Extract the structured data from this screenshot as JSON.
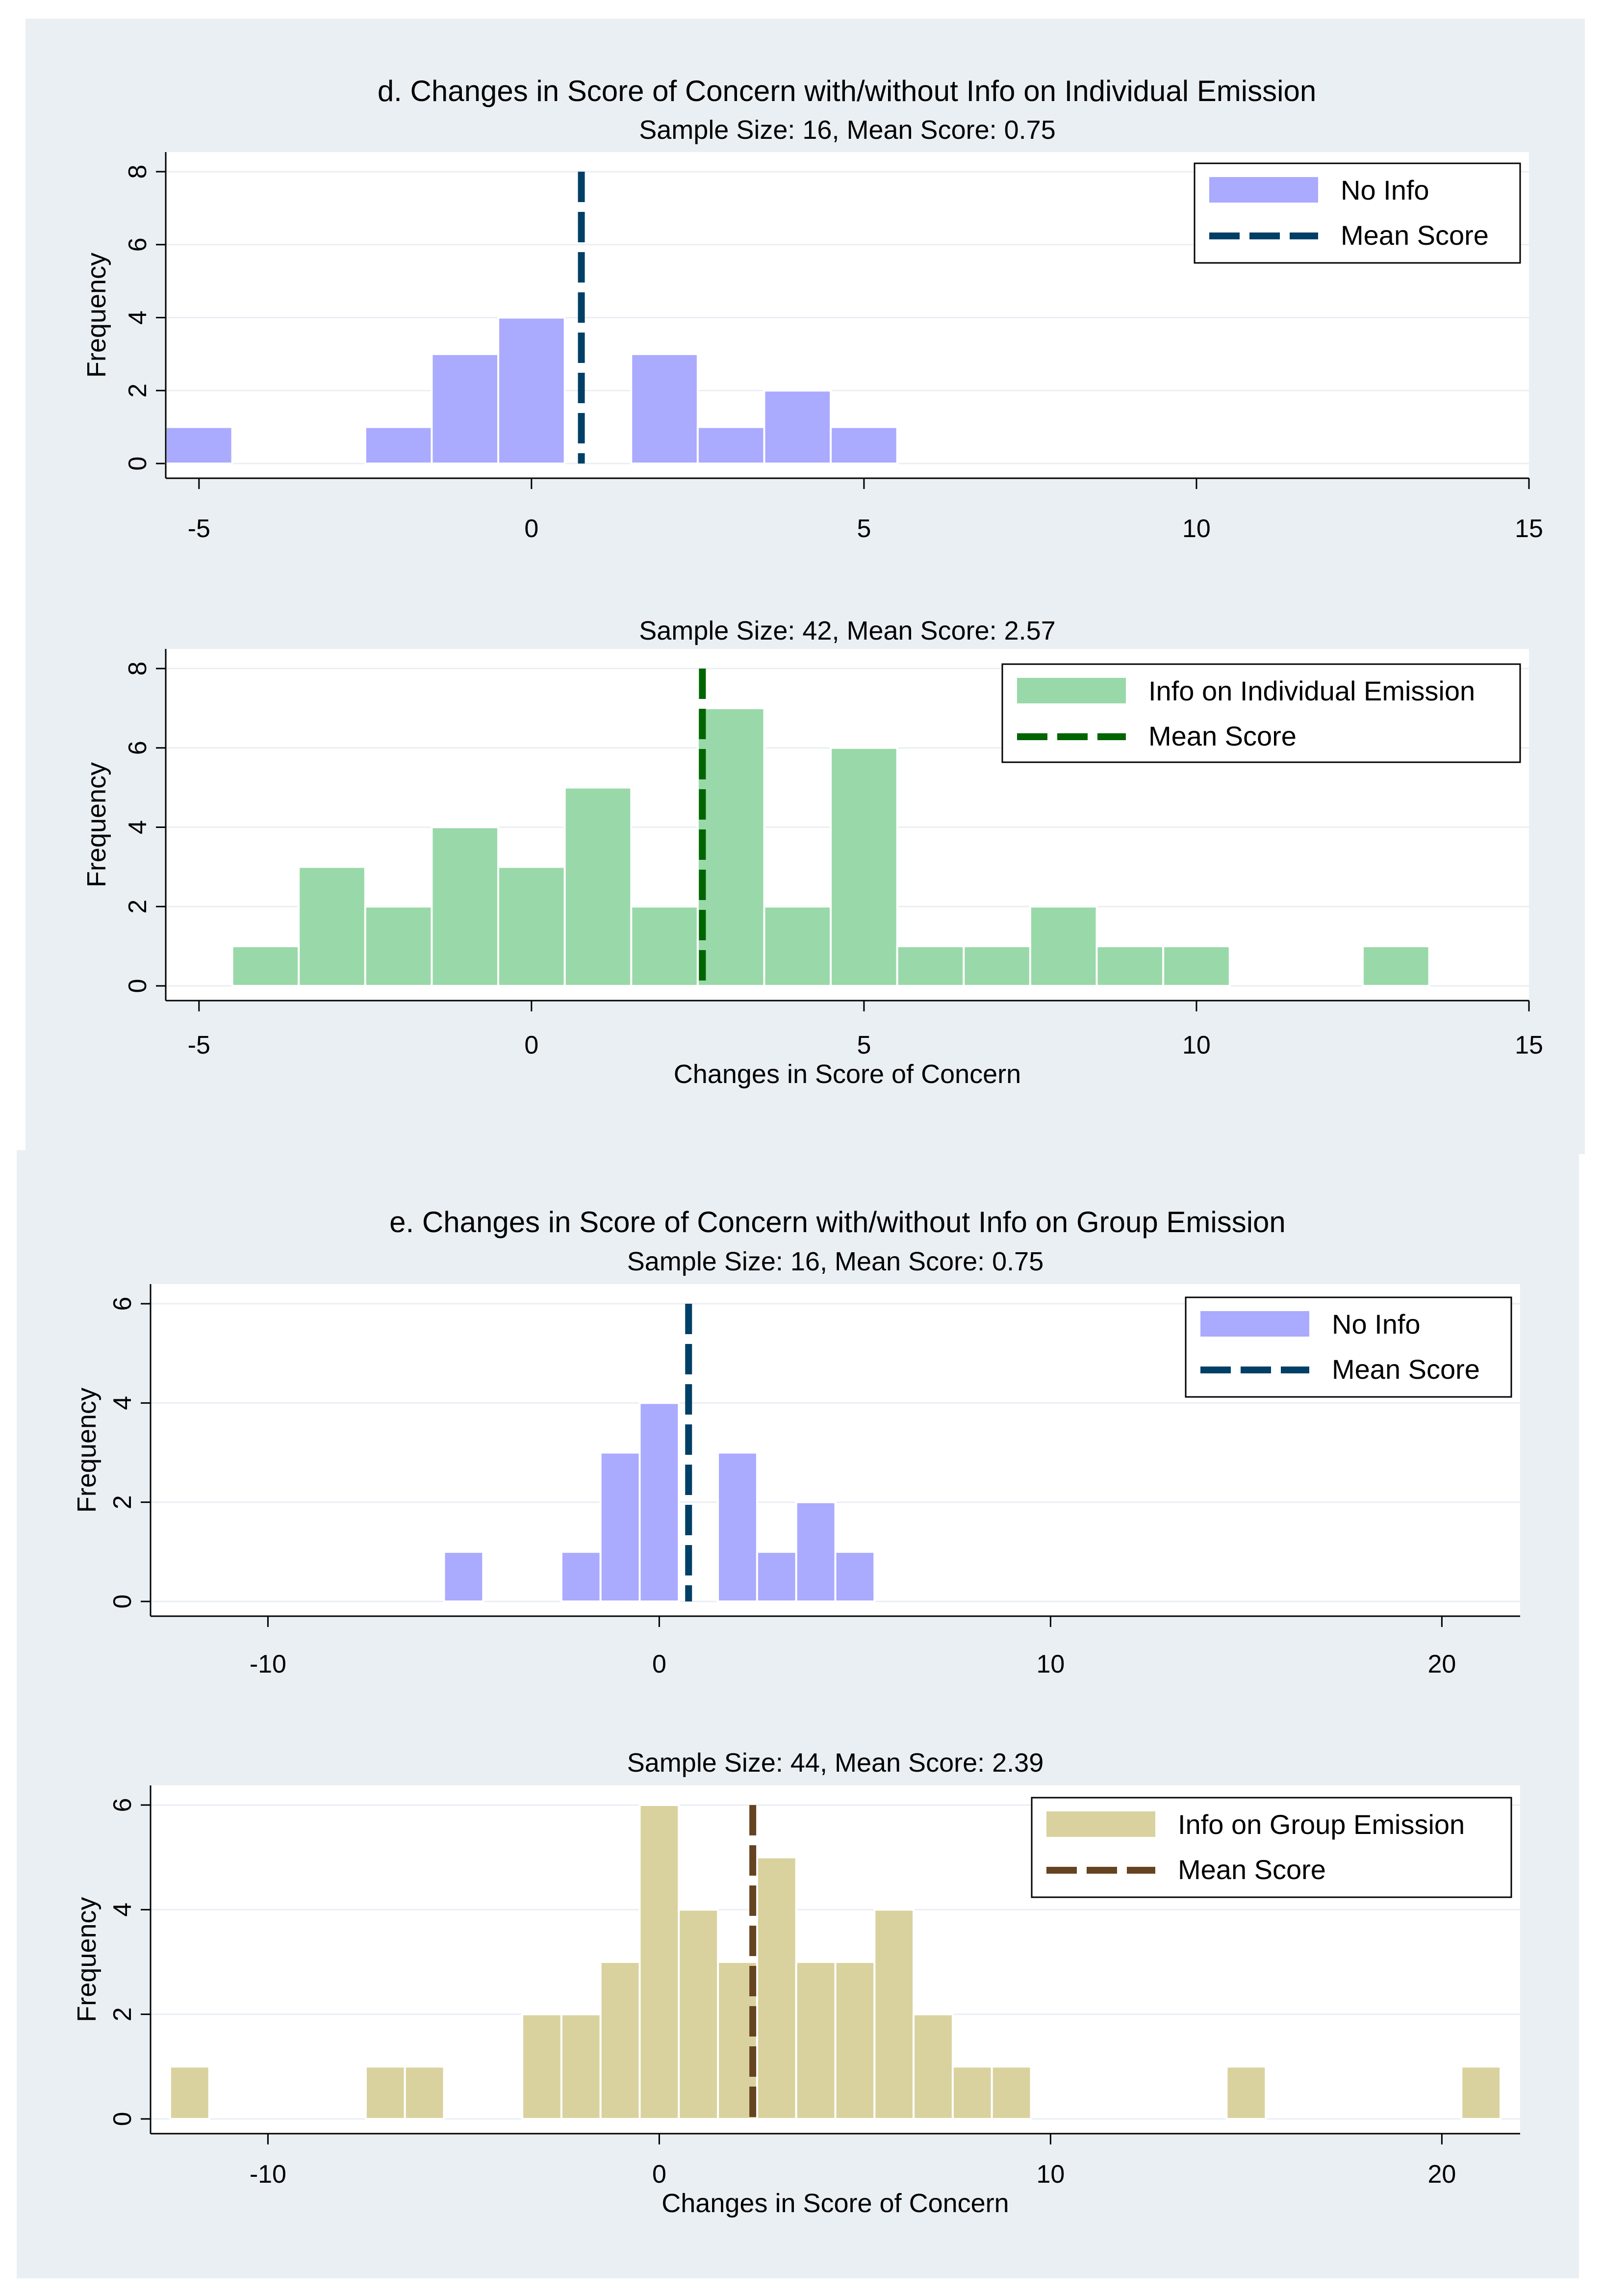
{
  "chart_data": [
    {
      "type": "bar",
      "panel": "d",
      "title": "d. Changes in Score of Concern with/without Info on Individual Emission",
      "subtitle": "Sample Size: 16, Mean Score: 0.75",
      "xlabel": "",
      "ylabel": "Frequency",
      "xlim": [
        -5.5,
        15
      ],
      "ylim": [
        0,
        8
      ],
      "x_ticks": [
        "-5",
        "0",
        "5",
        "10",
        "15"
      ],
      "y_ticks": [
        "0",
        "2",
        "4",
        "6",
        "8"
      ],
      "bin_width": 1,
      "bins": [
        -5,
        -2,
        -1,
        0,
        2,
        3,
        4,
        5
      ],
      "values": [
        1,
        1,
        3,
        4,
        3,
        1,
        2,
        1
      ],
      "mean": 0.75,
      "color": "#aaaaff",
      "mean_color": "#003f66",
      "legend": [
        "No Info",
        "Mean Score"
      ],
      "legend_position": "top-right"
    },
    {
      "type": "bar",
      "panel": "d",
      "title": "",
      "subtitle": "Sample Size: 42, Mean Score: 2.57",
      "xlabel": "Changes in Score of Concern",
      "ylabel": "Frequency",
      "xlim": [
        -5.5,
        15
      ],
      "ylim": [
        0,
        8
      ],
      "x_ticks": [
        "-5",
        "0",
        "5",
        "10",
        "15"
      ],
      "y_ticks": [
        "0",
        "2",
        "4",
        "6",
        "8"
      ],
      "bin_width": 1,
      "bins": [
        -4,
        -3,
        -2,
        -1,
        0,
        1,
        2,
        3,
        4,
        5,
        6,
        7,
        8,
        9,
        10,
        13
      ],
      "values": [
        1,
        3,
        2,
        4,
        3,
        5,
        2,
        7,
        2,
        6,
        1,
        1,
        2,
        1,
        1,
        1
      ],
      "mean": 2.57,
      "color": "#99d8a8",
      "mean_color": "#006400",
      "legend": [
        "Info on Individual Emission",
        "Mean Score"
      ],
      "legend_position": "top-right"
    },
    {
      "type": "bar",
      "panel": "e",
      "title": "e. Changes in Score of Concern with/without Info on Group Emission",
      "subtitle": "Sample Size: 16, Mean Score: 0.75",
      "xlabel": "",
      "ylabel": "Frequency",
      "xlim": [
        -13,
        22
      ],
      "ylim": [
        0,
        6
      ],
      "x_ticks": [
        "-10",
        "0",
        "10",
        "20"
      ],
      "y_ticks": [
        "0",
        "2",
        "4",
        "6"
      ],
      "bin_width": 1,
      "bins": [
        -5,
        -2,
        -1,
        0,
        2,
        3,
        4,
        5
      ],
      "values": [
        1,
        1,
        3,
        4,
        3,
        1,
        2,
        1
      ],
      "mean": 0.75,
      "color": "#aaaaff",
      "mean_color": "#003f66",
      "legend": [
        "No Info",
        "Mean Score"
      ],
      "legend_position": "top-right"
    },
    {
      "type": "bar",
      "panel": "e",
      "title": "",
      "subtitle": "Sample Size: 44, Mean Score: 2.39",
      "xlabel": "Changes in Score of Concern",
      "ylabel": "Frequency",
      "xlim": [
        -13,
        22
      ],
      "ylim": [
        0,
        6
      ],
      "x_ticks": [
        "-10",
        "0",
        "10",
        "20"
      ],
      "y_ticks": [
        "0",
        "2",
        "4",
        "6"
      ],
      "bin_width": 1,
      "bins": [
        -12,
        -7,
        -6,
        -3,
        -2,
        -1,
        0,
        1,
        2,
        3,
        4,
        5,
        6,
        7,
        8,
        9,
        15,
        21
      ],
      "values": [
        1,
        1,
        1,
        2,
        2,
        3,
        6,
        4,
        3,
        5,
        3,
        3,
        4,
        2,
        1,
        1,
        1,
        1
      ],
      "mean": 2.39,
      "color": "#d9d29e",
      "mean_color": "#654321",
      "legend": [
        "Info on Group Emission",
        "Mean Score"
      ],
      "legend_position": "top-right"
    }
  ]
}
